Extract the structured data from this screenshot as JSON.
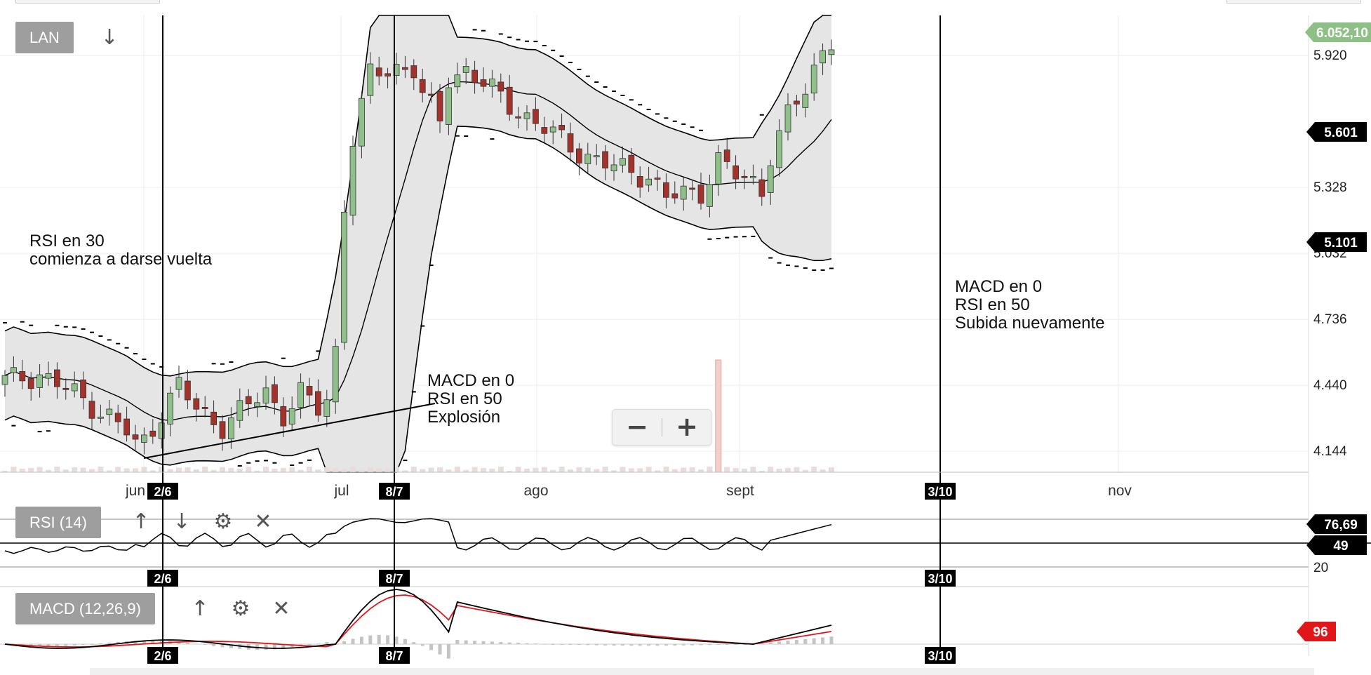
{
  "toolbar": {
    "symbol_label": "LAN",
    "rsi_label": "RSI (14)",
    "macd_label": "MACD (12,26,9)",
    "zoom_out": "−",
    "zoom_in": "+"
  },
  "annotations": {
    "note1": "RSI en 30\ncomienza a darse vuelta",
    "note2": "MACD en 0\nRSI en 50\nExplosión",
    "note3": "MACD en 0\nRSI en 50\nSubida nuevamente"
  },
  "chart_data": [
    {
      "type": "candlestick",
      "title": "LAN",
      "y_ticks": [
        "5.920",
        "5.328",
        "5.032",
        "4.736",
        "4.440",
        "4.144"
      ],
      "y_tick_values": [
        5920,
        5328,
        5032,
        4736,
        4440,
        4144
      ],
      "ylim": [
        4050,
        6100
      ],
      "x_ticks": [
        "jun",
        "jul",
        "ago",
        "sept",
        "nov"
      ],
      "price_labels": [
        {
          "text": "6.052,10",
          "value": 6052.1,
          "color": "#8cc084"
        },
        {
          "text": "5.601",
          "value": 5601,
          "color": "#000000"
        },
        {
          "text": "5.101",
          "value": 5101,
          "color": "#000000"
        }
      ],
      "event_markers": [
        "2/6",
        "8/7",
        "3/10"
      ],
      "indicators": [
        "Bollinger Bands",
        "Parabolic SAR",
        "Volume"
      ],
      "up_color": "#8fc08a",
      "down_color": "#a3322b",
      "band_fill": "#e5e5e5",
      "grid": true
    },
    {
      "type": "line",
      "title": "RSI (14)",
      "y_ticks": [
        "20"
      ],
      "levels": [
        49
      ],
      "price_labels": [
        {
          "text": "76,69",
          "value": 76.69,
          "color": "#000000"
        },
        {
          "text": "49",
          "value": 49,
          "color": "#000000"
        }
      ],
      "event_markers": [
        "2/6",
        "8/7",
        "3/10"
      ]
    },
    {
      "type": "line",
      "title": "MACD (12,26,9)",
      "series_colors": {
        "macd": "#000000",
        "signal": "#e0161b",
        "histogram": "#c4c4c4"
      },
      "price_labels": [
        {
          "text": "96",
          "value": 96,
          "color": "#e0161b"
        }
      ],
      "event_markers": [
        "2/6",
        "8/7",
        "3/10"
      ]
    }
  ]
}
